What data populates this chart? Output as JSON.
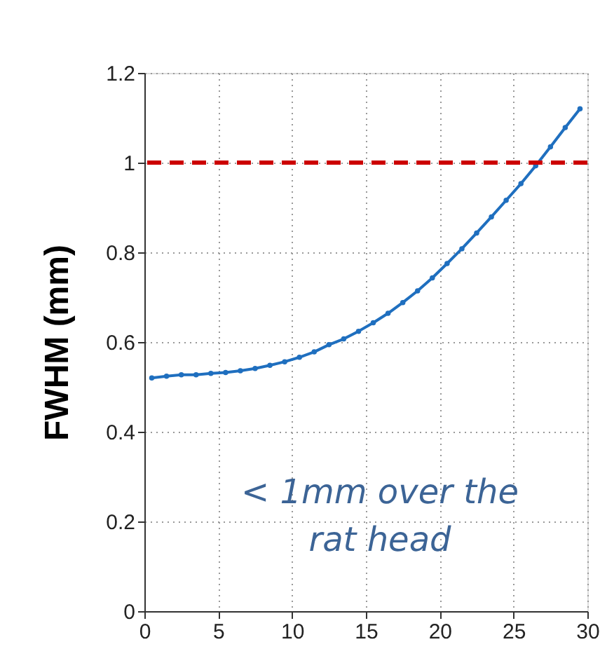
{
  "chart_data": {
    "type": "line",
    "ylabel": "FWHM (mm)",
    "x": [
      0.5,
      1.5,
      2.5,
      3.5,
      4.5,
      5.5,
      6.5,
      7.5,
      8.5,
      9.5,
      10.5,
      11.5,
      12.5,
      13.5,
      14.5,
      15.5,
      16.5,
      17.5,
      18.5,
      19.5,
      20.5,
      21.5,
      22.5,
      23.5,
      24.5,
      25.5,
      26.5,
      27.5,
      28.5,
      29.5
    ],
    "series": [
      {
        "color": "#1f6fbf",
        "values": [
          0.52,
          0.524,
          0.527,
          0.527,
          0.53,
          0.532,
          0.536,
          0.541,
          0.548,
          0.556,
          0.566,
          0.578,
          0.594,
          0.607,
          0.624,
          0.643,
          0.664,
          0.688,
          0.714,
          0.743,
          0.775,
          0.808,
          0.843,
          0.879,
          0.916,
          0.953,
          0.993,
          1.035,
          1.078,
          1.12
        ]
      }
    ],
    "xlim": [
      0,
      30
    ],
    "xticks": [
      0,
      5,
      10,
      15,
      20,
      25,
      30
    ],
    "ylim": [
      0,
      1.2
    ],
    "yticks": [
      0,
      0.2,
      0.4,
      0.6,
      0.8,
      1,
      1.2
    ],
    "ref_lines": [
      {
        "axis": "y",
        "value": 1,
        "color": "#cc0000",
        "line_style": "dashed"
      }
    ],
    "annotations": [
      "< 1mm over the\nrat head"
    ],
    "grid": true,
    "marker": "circle",
    "line_style": "solid"
  }
}
